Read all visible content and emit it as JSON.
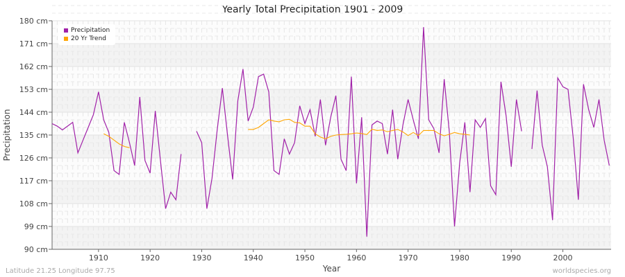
{
  "chart_data": {
    "type": "line",
    "title": "Yearly Total Precipitation 1901 - 2009",
    "xlabel": "Year",
    "ylabel": "Precipitation",
    "xlim": [
      1901,
      2009
    ],
    "ylim": [
      90,
      180
    ],
    "y_unit": "cm",
    "y_ticks": [
      "90 cm",
      "99 cm",
      "108 cm",
      "117 cm",
      "126 cm",
      "135 cm",
      "144 cm",
      "153 cm",
      "162 cm",
      "171 cm",
      "180 cm"
    ],
    "x_ticks": [
      "1910",
      "1920",
      "1930",
      "1940",
      "1950",
      "1960",
      "1970",
      "1980",
      "1990",
      "2000"
    ],
    "grid": true,
    "legend_position": "top-left",
    "series": [
      {
        "name": "Precipitation",
        "color": "#a020a8",
        "start_year": 1901,
        "values": [
          139.5,
          138.5,
          137,
          138.5,
          140,
          128,
          133,
          138,
          143,
          152,
          141,
          136,
          121,
          119.5,
          140,
          132,
          123,
          150,
          125,
          120,
          144.5,
          125,
          106,
          112.5,
          109.5,
          127.5,
          null,
          null,
          136.5,
          132,
          106,
          118,
          137,
          153.5,
          135,
          117.5,
          148.5,
          161,
          140.5,
          146,
          158,
          159,
          152,
          121,
          119.5,
          133.5,
          127.5,
          132,
          146.5,
          139.5,
          145,
          134.5,
          149,
          131,
          142,
          150.5,
          125.5,
          121,
          158,
          116,
          142,
          95,
          139,
          140.5,
          139.5,
          127.5,
          145,
          125.5,
          139,
          149,
          141,
          133.5,
          177.5,
          141,
          137.5,
          128,
          157,
          136,
          99,
          124,
          140,
          112.5,
          141,
          138,
          141.5,
          115,
          111.5,
          156,
          142.5,
          122.5,
          149,
          136.5,
          null,
          129.5,
          152.5,
          131,
          122.5,
          101.5,
          157.5,
          154,
          153,
          134,
          109.5,
          155,
          145,
          138,
          149,
          133,
          123
        ]
      },
      {
        "name": "20 Yr Trend",
        "color": "#ffa500",
        "start_year": 1901,
        "values": [
          null,
          null,
          null,
          null,
          null,
          null,
          null,
          null,
          null,
          null,
          135.5,
          134.5,
          133,
          131.5,
          130.5,
          130,
          null,
          null,
          null,
          null,
          null,
          null,
          null,
          null,
          null,
          null,
          null,
          null,
          null,
          null,
          null,
          null,
          null,
          null,
          null,
          null,
          null,
          null,
          137.2,
          137.2,
          138,
          139.5,
          141,
          140.5,
          140.2,
          141,
          141.2,
          140,
          139.8,
          138.5,
          138.5,
          135.5,
          134.2,
          133.5,
          134.5,
          135,
          135.2,
          135.3,
          135.5,
          135.8,
          135.6,
          135.2,
          137.3,
          136.8,
          137,
          136.3,
          136.8,
          137.2,
          136.2,
          134.8,
          136,
          134.8,
          136.8,
          136.8,
          136.8,
          135.5,
          134.7,
          135.3,
          136,
          135.5,
          135.3,
          135,
          null,
          null,
          null,
          null,
          null,
          null,
          null,
          null,
          null,
          null,
          null,
          null,
          null,
          null,
          null,
          null,
          null,
          null,
          null,
          null,
          null,
          null,
          null,
          null,
          null,
          null,
          null
        ]
      }
    ]
  },
  "footer": {
    "location": "Latitude 21.25 Longitude 97.75",
    "site": "worldspecies.org"
  }
}
